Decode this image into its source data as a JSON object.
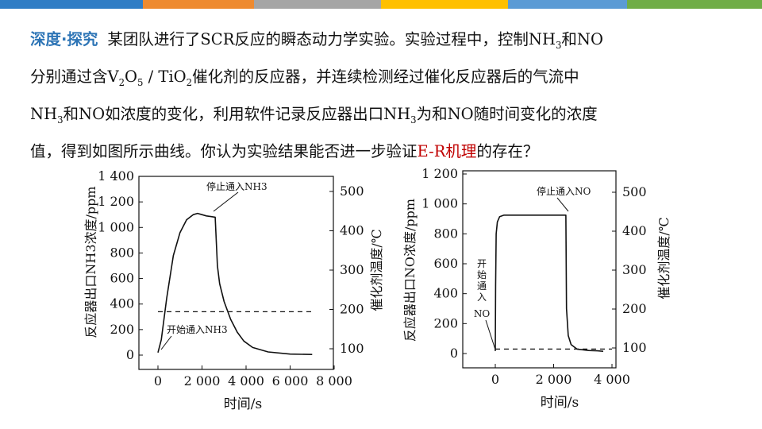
{
  "header": {
    "bar_colors": [
      "#2f7dc5",
      "#ee8a2f",
      "#a5a5a5",
      "#ffc000",
      "#5b9bd5",
      "#70ad47"
    ]
  },
  "paragraph": {
    "tag": "深度·探究",
    "s1": "某团队进行了SCR反应的瞬态动力学实验。实验过程中，控制NH",
    "s1_sub": "3",
    "s2": "和NO",
    "s3": "分别通过含V",
    "s3_sub1": "2",
    "s3_mid": "O",
    "s3_sub2": "5",
    "s3_b": " / TiO",
    "s3_sub3": "2",
    "s4": "催化剂的反应器，并连续检测经过催化反应器后的气流中",
    "s5": "NH",
    "s5_sub": "3",
    "s6": "和NO如浓度的变化，利用软件记录反应器出口NH",
    "s6_sub": "3",
    "s7": "为和NO随时间变化的浓度",
    "s8": "值，得到如图所示曲线。你认为实验结果能否进一步验证",
    "highlight": "E-R机理",
    "s9": "的存在？",
    "highlight_color": "#c00000",
    "tag_color": "#2e75b6"
  },
  "chart_data": [
    {
      "type": "line",
      "xlabel": "时间/s",
      "ylabel": "反应器出口NH3浓度/ppm",
      "ylabel2": "催化剂温度/℃",
      "xlim": [
        0,
        8000
      ],
      "ylim": [
        0,
        1400
      ],
      "y2lim": [
        100,
        500
      ],
      "xticks": [
        "0",
        "2 000",
        "4 000",
        "6 000",
        "8 000"
      ],
      "yticks": [
        "0",
        "200",
        "400",
        "600",
        "800",
        "1 000",
        "1 200",
        "1 400"
      ],
      "y2ticks": [
        "100",
        "200",
        "300",
        "400",
        "500"
      ],
      "annotations": [
        "停止通入NH3",
        "开始通入NH3"
      ],
      "series": [
        {
          "style": "solid",
          "x": [
            0,
            150,
            400,
            700,
            1000,
            1300,
            1600,
            1800,
            2000,
            2200,
            2400,
            2600,
            2700,
            2800,
            3000,
            3300,
            3600,
            3900,
            4300,
            5000,
            6000,
            7000
          ],
          "y": [
            20,
            120,
            450,
            780,
            960,
            1060,
            1100,
            1110,
            1100,
            1090,
            1085,
            1080,
            700,
            560,
            420,
            280,
            180,
            110,
            60,
            25,
            8,
            5
          ]
        },
        {
          "style": "dashed",
          "x": [
            0,
            7000
          ],
          "y": [
            340,
            340
          ]
        }
      ]
    },
    {
      "type": "line",
      "xlabel": "时间/s",
      "ylabel": "反应器出口NO浓度/ppm",
      "ylabel2": "催化剂温度/℃",
      "xlim": [
        0,
        4000
      ],
      "ylim": [
        0,
        1200
      ],
      "y2lim": [
        100,
        500
      ],
      "xticks": [
        "0",
        "2 000",
        "4 000"
      ],
      "yticks": [
        "0",
        "200",
        "400",
        "600",
        "800",
        "1 000",
        "1 200"
      ],
      "y2ticks": [
        "100",
        "200",
        "300",
        "400",
        "500"
      ],
      "annotations": [
        "停止通入NO",
        "开始通入NO"
      ],
      "series": [
        {
          "style": "solid",
          "x": [
            -20,
            0,
            10,
            30,
            70,
            150,
            300,
            800,
            1500,
            2000,
            2420,
            2440,
            2500,
            2600,
            2800,
            3000,
            3200,
            3500,
            3700
          ],
          "y": [
            20,
            20,
            450,
            800,
            880,
            915,
            925,
            925,
            925,
            925,
            925,
            300,
            120,
            60,
            30,
            25,
            20,
            18,
            15
          ]
        },
        {
          "style": "dashed",
          "x": [
            0,
            4000
          ],
          "y": [
            30,
            30
          ]
        }
      ]
    }
  ]
}
